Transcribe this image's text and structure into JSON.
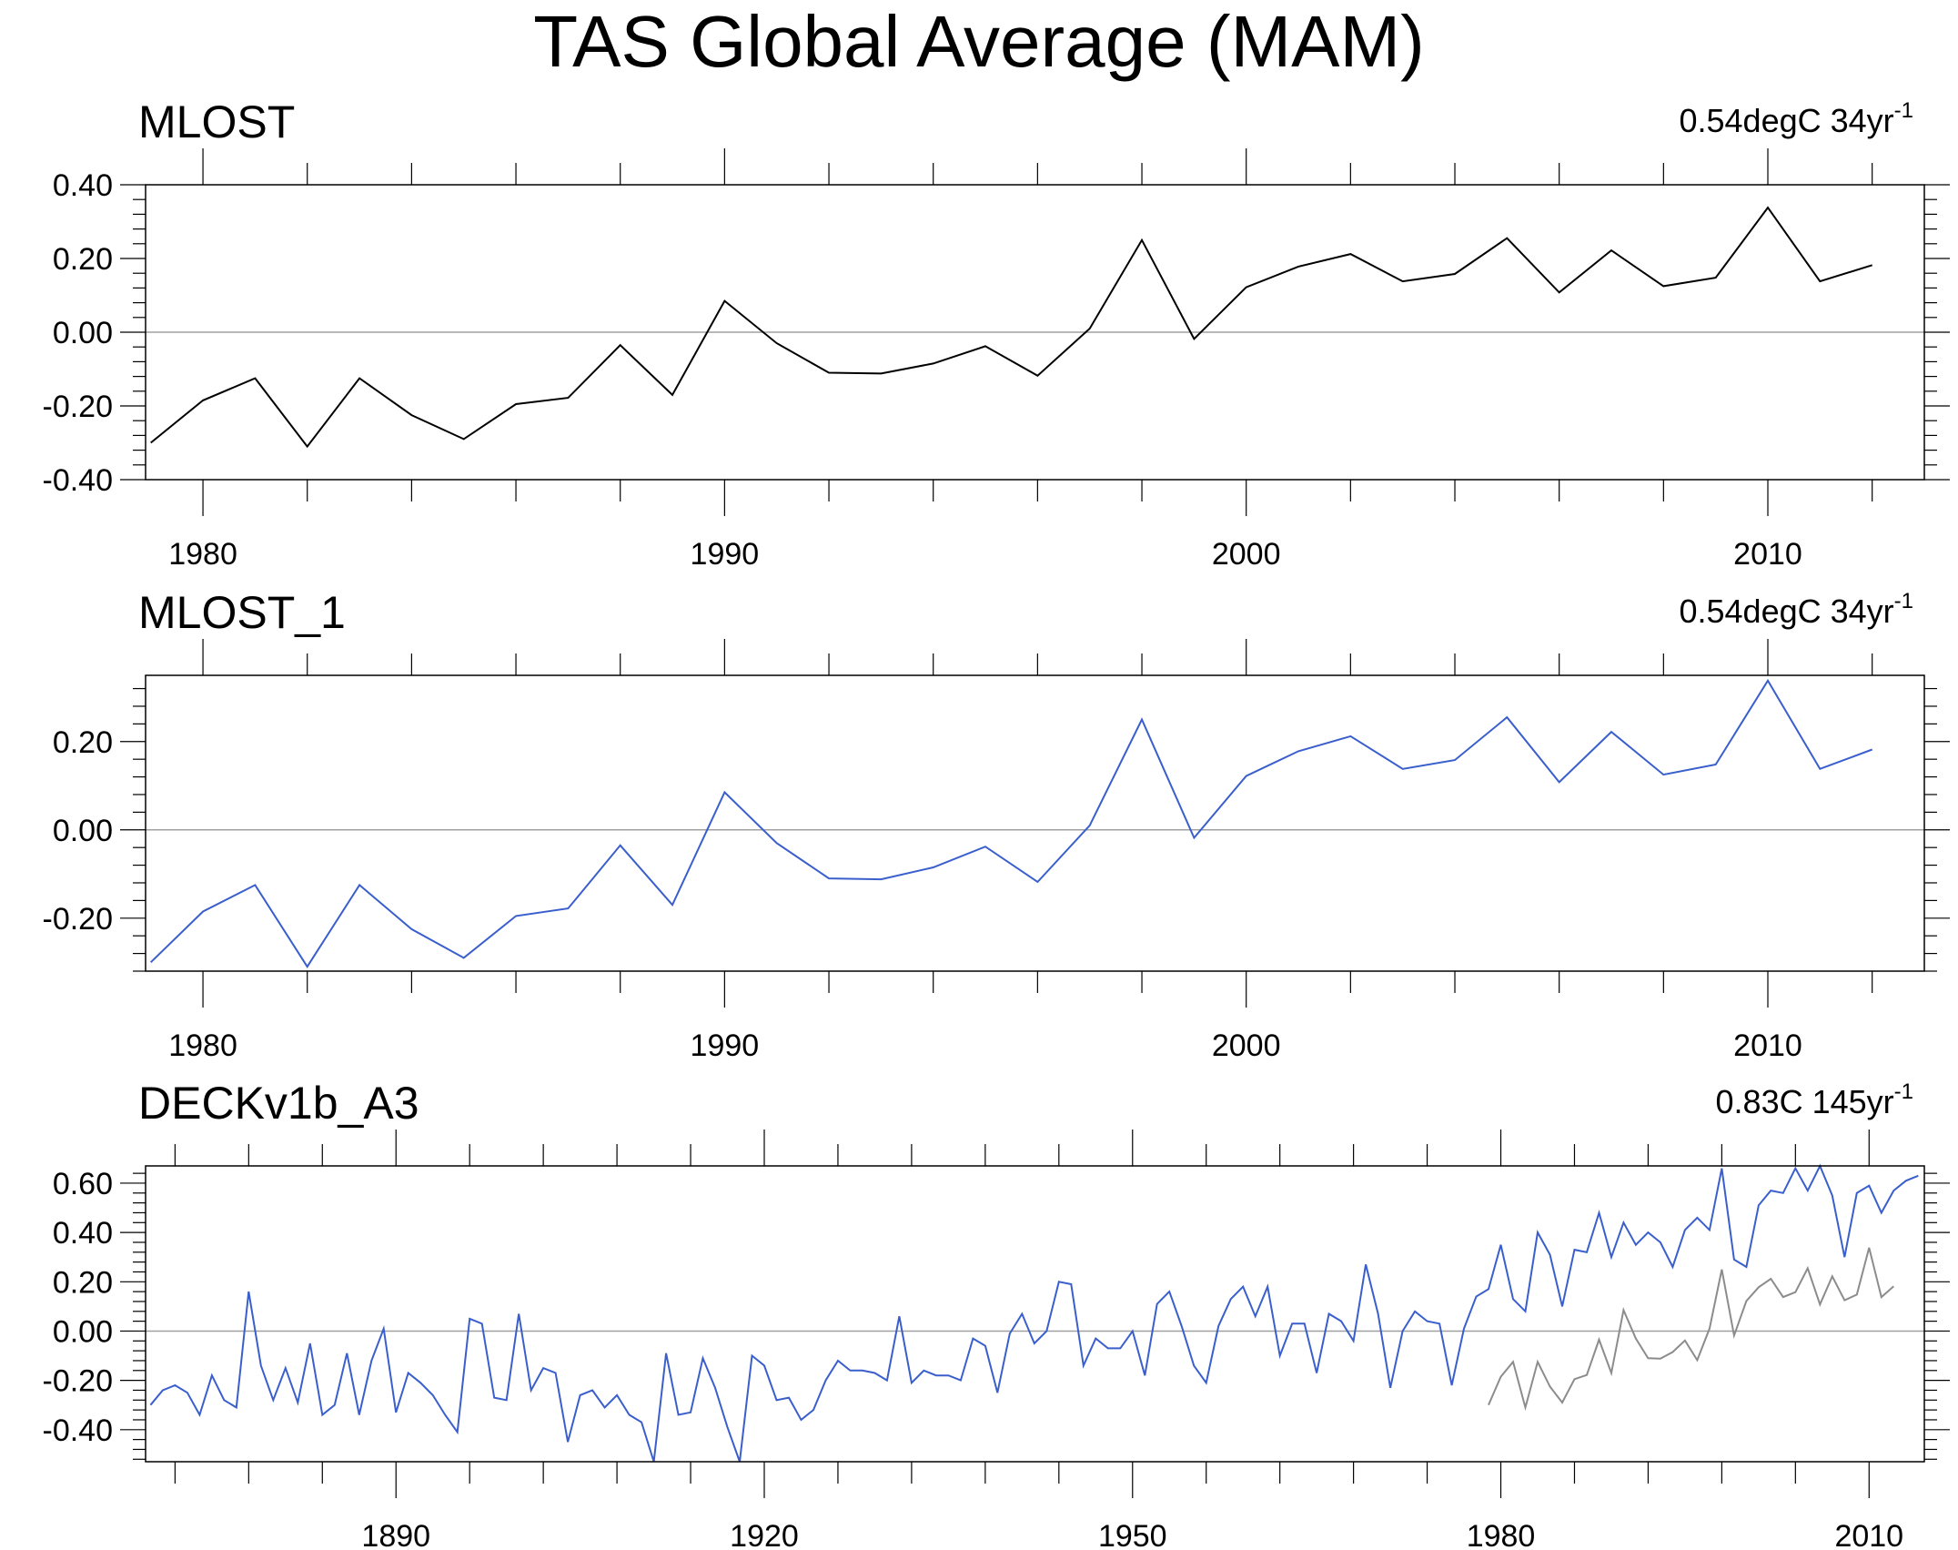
{
  "title": "TAS Global Average (MAM)",
  "colors": {
    "obs": "#000000",
    "model": "#3a5fcd",
    "overlay": "#8c8c8c",
    "zero": "#a0a0a0"
  },
  "chart_data": [
    {
      "type": "line",
      "left_title": "MLOST",
      "right_text": "0.54degC 34yr",
      "right_sup": "-1",
      "xlim": [
        1978.9,
        2013
      ],
      "ylim": [
        -0.4,
        0.4
      ],
      "xticks": [
        1980,
        1990,
        2000,
        2010
      ],
      "yticks": [
        -0.4,
        -0.2,
        0.0,
        0.2,
        0.4
      ],
      "ytick_labels": [
        "-0.40",
        "-0.20",
        "0.00",
        "0.20",
        "0.40"
      ],
      "series": [
        {
          "name": "MLOST",
          "color_key": "obs",
          "x": [
            1979,
            1980,
            1981,
            1982,
            1983,
            1984,
            1985,
            1986,
            1987,
            1988,
            1989,
            1990,
            1991,
            1992,
            1993,
            1994,
            1995,
            1996,
            1997,
            1998,
            1999,
            2000,
            2001,
            2002,
            2003,
            2004,
            2005,
            2006,
            2007,
            2008,
            2009,
            2010,
            2011,
            2012
          ],
          "values": [
            -0.3,
            -0.185,
            -0.125,
            -0.31,
            -0.125,
            -0.225,
            -0.29,
            -0.195,
            -0.178,
            -0.035,
            -0.17,
            0.085,
            -0.03,
            -0.11,
            -0.112,
            -0.085,
            -0.038,
            -0.118,
            0.01,
            0.25,
            -0.018,
            0.122,
            0.178,
            0.212,
            0.138,
            0.158,
            0.255,
            0.108,
            0.222,
            0.125,
            0.148,
            0.338,
            0.138,
            0.182
          ]
        }
      ]
    },
    {
      "type": "line",
      "left_title": "MLOST_1",
      "right_text": "0.54degC 34yr",
      "right_sup": "-1",
      "xlim": [
        1978.9,
        2013
      ],
      "ylim": [
        -0.32,
        0.35
      ],
      "xticks": [
        1980,
        1990,
        2000,
        2010
      ],
      "yticks": [
        -0.2,
        0.0,
        0.2
      ],
      "ytick_labels": [
        "-0.20",
        "0.00",
        "0.20"
      ],
      "series": [
        {
          "name": "MLOST_1",
          "color_key": "model",
          "x": [
            1979,
            1980,
            1981,
            1982,
            1983,
            1984,
            1985,
            1986,
            1987,
            1988,
            1989,
            1990,
            1991,
            1992,
            1993,
            1994,
            1995,
            1996,
            1997,
            1998,
            1999,
            2000,
            2001,
            2002,
            2003,
            2004,
            2005,
            2006,
            2007,
            2008,
            2009,
            2010,
            2011,
            2012
          ],
          "values": [
            -0.3,
            -0.185,
            -0.125,
            -0.31,
            -0.125,
            -0.225,
            -0.29,
            -0.195,
            -0.178,
            -0.035,
            -0.17,
            0.085,
            -0.03,
            -0.11,
            -0.112,
            -0.085,
            -0.038,
            -0.118,
            0.01,
            0.25,
            -0.018,
            0.122,
            0.178,
            0.212,
            0.138,
            0.158,
            0.255,
            0.108,
            0.222,
            0.125,
            0.148,
            0.338,
            0.138,
            0.182
          ]
        }
      ]
    },
    {
      "type": "line",
      "left_title": "DECKv1b_A3",
      "right_text": "0.83C 145yr",
      "right_sup": "-1",
      "xlim": [
        1869.6,
        2014.5
      ],
      "ylim": [
        -0.53,
        0.67
      ],
      "xticks": [
        1890,
        1920,
        1950,
        1980,
        2010
      ],
      "yticks": [
        -0.4,
        -0.2,
        0.0,
        0.2,
        0.4,
        0.6
      ],
      "ytick_labels": [
        "-0.40",
        "-0.20",
        "0.00",
        "0.20",
        "0.40",
        "0.60"
      ],
      "series": [
        {
          "name": "DECKv1b_A3",
          "color_key": "model",
          "x": [
            1870,
            1871,
            1872,
            1873,
            1874,
            1875,
            1876,
            1877,
            1878,
            1879,
            1880,
            1881,
            1882,
            1883,
            1884,
            1885,
            1886,
            1887,
            1888,
            1889,
            1890,
            1891,
            1892,
            1893,
            1894,
            1895,
            1896,
            1897,
            1898,
            1899,
            1900,
            1901,
            1902,
            1903,
            1904,
            1905,
            1906,
            1907,
            1908,
            1909,
            1910,
            1911,
            1912,
            1913,
            1914,
            1915,
            1916,
            1917,
            1918,
            1919,
            1920,
            1921,
            1922,
            1923,
            1924,
            1925,
            1926,
            1927,
            1928,
            1929,
            1930,
            1931,
            1932,
            1933,
            1934,
            1935,
            1936,
            1937,
            1938,
            1939,
            1940,
            1941,
            1942,
            1943,
            1944,
            1945,
            1946,
            1947,
            1948,
            1949,
            1950,
            1951,
            1952,
            1953,
            1954,
            1955,
            1956,
            1957,
            1958,
            1959,
            1960,
            1961,
            1962,
            1963,
            1964,
            1965,
            1966,
            1967,
            1968,
            1969,
            1970,
            1971,
            1972,
            1973,
            1974,
            1975,
            1976,
            1977,
            1978,
            1979,
            1980,
            1981,
            1982,
            1983,
            1984,
            1985,
            1986,
            1987,
            1988,
            1989,
            1990,
            1991,
            1992,
            1993,
            1994,
            1995,
            1996,
            1997,
            1998,
            1999,
            2000,
            2001,
            2002,
            2003,
            2004,
            2005,
            2006,
            2007,
            2008,
            2009,
            2010,
            2011,
            2012,
            2013,
            2014
          ],
          "values": [
            -0.3,
            -0.24,
            -0.22,
            -0.25,
            -0.34,
            -0.18,
            -0.28,
            -0.31,
            0.16,
            -0.14,
            -0.28,
            -0.15,
            -0.29,
            -0.05,
            -0.34,
            -0.3,
            -0.09,
            -0.34,
            -0.12,
            0.01,
            -0.33,
            -0.17,
            -0.21,
            -0.26,
            -0.34,
            -0.41,
            0.05,
            0.03,
            -0.27,
            -0.28,
            0.07,
            -0.24,
            -0.15,
            -0.17,
            -0.45,
            -0.26,
            -0.24,
            -0.31,
            -0.26,
            -0.34,
            -0.37,
            -0.53,
            -0.09,
            -0.34,
            -0.33,
            -0.11,
            -0.23,
            -0.39,
            -0.53,
            -0.1,
            -0.14,
            -0.28,
            -0.27,
            -0.36,
            -0.32,
            -0.2,
            -0.12,
            -0.16,
            -0.16,
            -0.17,
            -0.2,
            0.06,
            -0.21,
            -0.16,
            -0.18,
            -0.18,
            -0.2,
            -0.03,
            -0.06,
            -0.25,
            -0.01,
            0.07,
            -0.05,
            0.0,
            0.2,
            0.19,
            -0.14,
            -0.03,
            -0.07,
            -0.07,
            0.0,
            -0.18,
            0.11,
            0.16,
            0.02,
            -0.14,
            -0.21,
            0.02,
            0.13,
            0.18,
            0.06,
            0.18,
            -0.1,
            0.03,
            0.03,
            -0.17,
            0.07,
            0.04,
            -0.04,
            0.27,
            0.07,
            -0.23,
            0.0,
            0.08,
            0.04,
            0.03,
            -0.22,
            0.01,
            0.14,
            0.17,
            0.35,
            0.13,
            0.08,
            0.4,
            0.31,
            0.1,
            0.33,
            0.32,
            0.48,
            0.3,
            0.44,
            0.35,
            0.4,
            0.36,
            0.26,
            0.41,
            0.46,
            0.41,
            0.66,
            0.29,
            0.26,
            0.51,
            0.57,
            0.56,
            0.66,
            0.57,
            0.67,
            0.55,
            0.3,
            0.56,
            0.59,
            0.48,
            0.57,
            0.61,
            0.63
          ]
        },
        {
          "name": "MLOST overlay",
          "color_key": "overlay",
          "x": [
            1979,
            1980,
            1981,
            1982,
            1983,
            1984,
            1985,
            1986,
            1987,
            1988,
            1989,
            1990,
            1991,
            1992,
            1993,
            1994,
            1995,
            1996,
            1997,
            1998,
            1999,
            2000,
            2001,
            2002,
            2003,
            2004,
            2005,
            2006,
            2007,
            2008,
            2009,
            2010,
            2011,
            2012
          ],
          "values": [
            -0.3,
            -0.185,
            -0.125,
            -0.31,
            -0.125,
            -0.225,
            -0.29,
            -0.195,
            -0.178,
            -0.035,
            -0.17,
            0.085,
            -0.03,
            -0.11,
            -0.112,
            -0.085,
            -0.038,
            -0.118,
            0.01,
            0.25,
            -0.018,
            0.122,
            0.178,
            0.212,
            0.138,
            0.158,
            0.255,
            0.108,
            0.222,
            0.125,
            0.148,
            0.338,
            0.138,
            0.182
          ]
        }
      ]
    }
  ]
}
